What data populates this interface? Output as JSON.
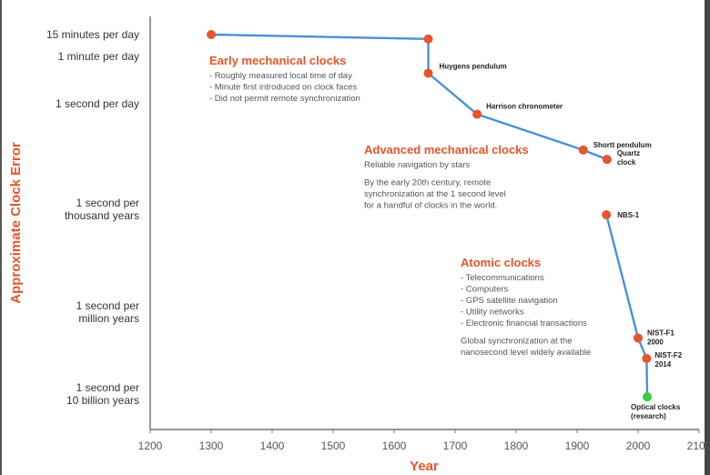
{
  "chart_data": {
    "type": "line",
    "title": "",
    "xlabel": "Year",
    "ylabel": "Approximate Clock Error",
    "xlim": [
      1200,
      2100
    ],
    "x_ticks": [
      1200,
      1300,
      1400,
      1500,
      1600,
      1700,
      1800,
      1900,
      2000,
      2100
    ],
    "y_scale": "log",
    "y_unit": "seconds of error per day",
    "y_ticks": [
      {
        "label": [
          "15 minutes per day"
        ],
        "value": 900
      },
      {
        "label": [
          "1 minute per day"
        ],
        "value": 60
      },
      {
        "label": [
          "1 second per day"
        ],
        "value": 1
      },
      {
        "label": [
          "1 second per",
          "thousand years"
        ],
        "value": 2.7e-06
      },
      {
        "label": [
          "1 second per",
          "million years"
        ],
        "value": 2.7e-09
      },
      {
        "label": [
          "1 second per",
          "10 billion years"
        ],
        "value": 2.7e-13
      }
    ],
    "grid": false,
    "series": [
      {
        "color": "#4a90d9",
        "points": [
          {
            "x": 1300,
            "y": 900,
            "label": [],
            "color": "#e8542b"
          },
          {
            "x": 1656,
            "y": 520,
            "label": [],
            "color": "#e8542b"
          },
          {
            "x": 1656,
            "y": 14,
            "label": [
              "Huygens pendulum"
            ],
            "color": "#e8542b"
          },
          {
            "x": 1736,
            "y": 0.3,
            "label": [
              "Harrison chronometer"
            ],
            "color": "#e8542b"
          },
          {
            "x": 1910,
            "y": 0.005,
            "label": [
              "Shortt pendulum"
            ],
            "color": "#e8542b"
          },
          {
            "x": 1949,
            "y": 0.0017,
            "label": [
              "Quartz",
              "clock"
            ],
            "color": "#e8542b"
          }
        ]
      },
      {
        "color": "#4a90d9",
        "points": [
          {
            "x": 1948,
            "y": 3e-06,
            "label": [
              "NBS-1"
            ],
            "color": "#e8542b"
          },
          {
            "x": 2000,
            "y": 3e-10,
            "label": [
              "NIST-F1",
              "2000"
            ],
            "color": "#e8542b"
          },
          {
            "x": 2014,
            "y": 3e-11,
            "label": [
              "NIST-F2",
              "2014"
            ],
            "color": "#e8542b"
          },
          {
            "x": 2015,
            "y": 4e-13,
            "label": [
              "Optical clocks",
              "(research)"
            ],
            "color": "#3dcc3d"
          }
        ]
      }
    ],
    "annotations": [
      {
        "title": "Early mechanical clocks",
        "lines": [
          "- Roughly measured local time of day",
          "- Minute first introduced on clock faces",
          "- Did not permit remote synchronization"
        ]
      },
      {
        "title": "Advanced mechanical clocks",
        "lines": [
          "Reliable navigation by stars",
          "",
          "By the early 20th century, remote",
          "synchronization at the 1 second level",
          "for a handful of clocks in the world."
        ]
      },
      {
        "title": "Atomic clocks",
        "lines": [
          "- Telecommunications",
          "- Computers",
          "- GPS satellite navigation",
          "- Utility networks",
          "- Electronic financial transactions",
          "",
          "Global synchronization at the",
          "nanosecond level widely available"
        ]
      }
    ]
  }
}
